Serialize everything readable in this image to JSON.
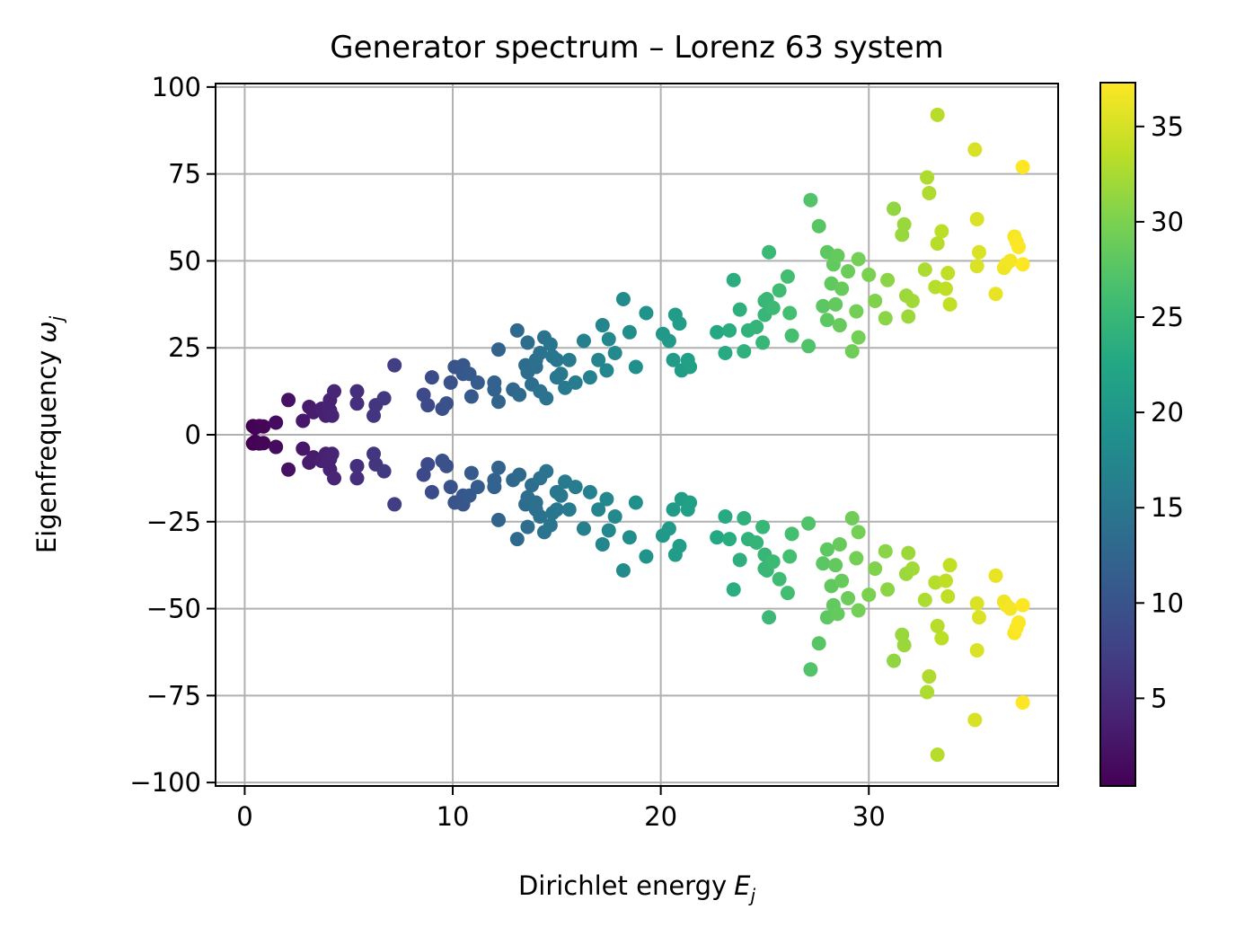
{
  "chart_data": {
    "type": "scatter",
    "title": "Generator spectrum – Lorenz 63 system",
    "xlabel": "Dirichlet energy",
    "xlabel_symbol": "E",
    "xlabel_sub": "j",
    "ylabel": "Eigenfrequency",
    "ylabel_symbol": "ω",
    "ylabel_sub": "j",
    "xlim": [
      -1.4,
      39.1
    ],
    "ylim": [
      -101,
      101
    ],
    "xticks": [
      0,
      10,
      20,
      30
    ],
    "yticks": [
      100,
      75,
      50,
      25,
      0,
      -25,
      -50,
      -75,
      -100
    ],
    "ytick_labels": [
      "100",
      "75",
      "50",
      "25",
      "0",
      "−25",
      "−50",
      "−75",
      "−100"
    ],
    "grid": true,
    "colormap": "viridis",
    "color_by": "x",
    "colorbar": {
      "vmin": 0.4,
      "vmax": 37.3,
      "ticks": [
        5,
        10,
        15,
        20,
        25,
        30,
        35
      ]
    },
    "symmetric_about_zero": true,
    "points_positive_half": [
      [
        0.4,
        2.5
      ],
      [
        0.5,
        2.0
      ],
      [
        0.7,
        2.5
      ],
      [
        0.9,
        2.4
      ],
      [
        1.5,
        3.5
      ],
      [
        2.1,
        10.0
      ],
      [
        2.8,
        4.0
      ],
      [
        3.1,
        8.0
      ],
      [
        3.3,
        6.5
      ],
      [
        3.7,
        7.5
      ],
      [
        3.9,
        5.5
      ],
      [
        4.0,
        8.0
      ],
      [
        4.1,
        7.0
      ],
      [
        4.1,
        10.0
      ],
      [
        4.2,
        5.5
      ],
      [
        4.3,
        12.5
      ],
      [
        5.4,
        12.5
      ],
      [
        5.4,
        9.0
      ],
      [
        6.2,
        5.5
      ],
      [
        6.3,
        8.5
      ],
      [
        6.7,
        10.5
      ],
      [
        7.2,
        20.0
      ],
      [
        8.6,
        11.5
      ],
      [
        8.8,
        8.5
      ],
      [
        9.0,
        16.5
      ],
      [
        9.5,
        7.5
      ],
      [
        9.7,
        9.0
      ],
      [
        9.9,
        15.0
      ],
      [
        10.1,
        19.5
      ],
      [
        10.5,
        17.5
      ],
      [
        10.5,
        20.0
      ],
      [
        10.8,
        17.5
      ],
      [
        10.9,
        11.0
      ],
      [
        11.2,
        15.0
      ],
      [
        12.0,
        15.0
      ],
      [
        12.0,
        13.0
      ],
      [
        12.2,
        24.5
      ],
      [
        12.2,
        9.5
      ],
      [
        12.9,
        13.0
      ],
      [
        13.1,
        30.0
      ],
      [
        13.2,
        11.5
      ],
      [
        13.5,
        20.0
      ],
      [
        13.6,
        26.5
      ],
      [
        13.6,
        18.0
      ],
      [
        13.8,
        14.5
      ],
      [
        14.0,
        21.5
      ],
      [
        14.0,
        19.5
      ],
      [
        14.2,
        23.5
      ],
      [
        14.2,
        12.5
      ],
      [
        14.4,
        28.0
      ],
      [
        14.5,
        10.5
      ],
      [
        14.7,
        26.0
      ],
      [
        14.8,
        22.5
      ],
      [
        15.0,
        21.5
      ],
      [
        15.0,
        16.5
      ],
      [
        15.2,
        17.5
      ],
      [
        15.4,
        13.5
      ],
      [
        15.6,
        21.5
      ],
      [
        15.9,
        15.0
      ],
      [
        16.3,
        27.0
      ],
      [
        16.6,
        16.5
      ],
      [
        17.0,
        21.5
      ],
      [
        17.2,
        31.5
      ],
      [
        17.4,
        18.5
      ],
      [
        17.5,
        27.5
      ],
      [
        17.8,
        23.5
      ],
      [
        18.2,
        39.0
      ],
      [
        18.5,
        29.5
      ],
      [
        18.8,
        19.5
      ],
      [
        19.3,
        35.0
      ],
      [
        20.1,
        29.0
      ],
      [
        20.4,
        27.0
      ],
      [
        20.6,
        21.5
      ],
      [
        20.7,
        34.5
      ],
      [
        20.9,
        32.0
      ],
      [
        21.0,
        18.5
      ],
      [
        21.3,
        21.5
      ],
      [
        21.4,
        19.5
      ],
      [
        22.7,
        29.5
      ],
      [
        23.1,
        23.5
      ],
      [
        23.3,
        30.0
      ],
      [
        23.5,
        44.5
      ],
      [
        23.8,
        36.0
      ],
      [
        24.0,
        24.0
      ],
      [
        24.2,
        30.0
      ],
      [
        24.6,
        31.0
      ],
      [
        24.9,
        26.5
      ],
      [
        25.0,
        34.5
      ],
      [
        25.0,
        38.5
      ],
      [
        25.1,
        39.0
      ],
      [
        25.2,
        52.5
      ],
      [
        25.4,
        36.5
      ],
      [
        25.7,
        41.5
      ],
      [
        26.1,
        45.5
      ],
      [
        26.2,
        35.0
      ],
      [
        26.3,
        28.5
      ],
      [
        27.1,
        25.5
      ],
      [
        27.2,
        67.5
      ],
      [
        27.6,
        60.0
      ],
      [
        27.8,
        37.0
      ],
      [
        28.0,
        52.5
      ],
      [
        28.0,
        33.0
      ],
      [
        28.2,
        43.5
      ],
      [
        28.3,
        49.0
      ],
      [
        28.4,
        37.5
      ],
      [
        28.5,
        51.5
      ],
      [
        28.6,
        31.5
      ],
      [
        28.7,
        42.0
      ],
      [
        29.0,
        47.0
      ],
      [
        29.2,
        24.0
      ],
      [
        29.4,
        35.5
      ],
      [
        29.5,
        28.0
      ],
      [
        29.5,
        50.5
      ],
      [
        30.0,
        46.0
      ],
      [
        30.3,
        38.5
      ],
      [
        30.8,
        33.5
      ],
      [
        30.9,
        44.5
      ],
      [
        31.2,
        65.0
      ],
      [
        31.6,
        57.5
      ],
      [
        31.7,
        60.5
      ],
      [
        31.8,
        40.0
      ],
      [
        31.9,
        34.0
      ],
      [
        32.1,
        38.5
      ],
      [
        32.7,
        47.5
      ],
      [
        32.8,
        74.0
      ],
      [
        32.9,
        69.5
      ],
      [
        33.2,
        42.5
      ],
      [
        33.3,
        92.0
      ],
      [
        33.3,
        55.0
      ],
      [
        33.5,
        58.5
      ],
      [
        33.7,
        42.0
      ],
      [
        33.8,
        46.5
      ],
      [
        33.9,
        37.5
      ],
      [
        35.1,
        82.0
      ],
      [
        35.2,
        62.0
      ],
      [
        35.2,
        48.5
      ],
      [
        35.3,
        52.5
      ],
      [
        36.1,
        40.5
      ],
      [
        36.5,
        48.0
      ],
      [
        36.6,
        49.0
      ],
      [
        36.8,
        50.0
      ],
      [
        37.0,
        57.0
      ],
      [
        37.1,
        55.5
      ],
      [
        37.2,
        54.0
      ],
      [
        37.4,
        49.0
      ],
      [
        37.4,
        77.0
      ]
    ]
  }
}
